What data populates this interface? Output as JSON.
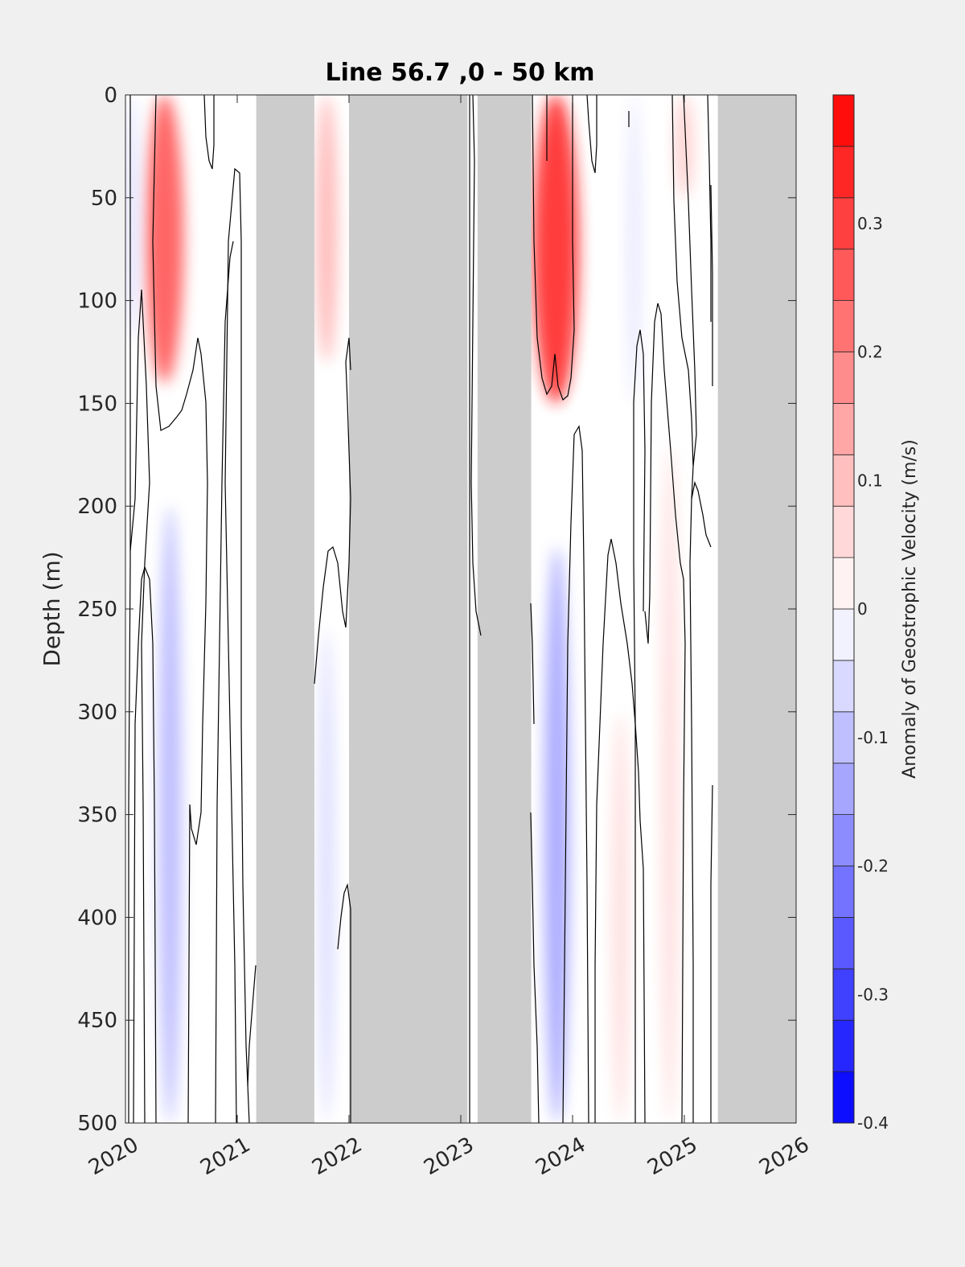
{
  "chart_data": {
    "type": "heatmap",
    "title": "Line 56.7 ,0 - 50 km",
    "xlabel": "",
    "ylabel": "Depth (m)",
    "xlim": [
      2020,
      2026
    ],
    "ylim": [
      0,
      500
    ],
    "y_reversed": true,
    "x_ticks": [
      "2020",
      "2021",
      "2022",
      "2023",
      "2024",
      "2025",
      "2026"
    ],
    "y_ticks": [
      "0",
      "50",
      "100",
      "150",
      "200",
      "250",
      "300",
      "350",
      "400",
      "450",
      "500"
    ],
    "colorbar": {
      "label": "Anomaly of Geostrophic Velocity (m/s)",
      "range": [
        -0.4,
        0.4
      ],
      "levels": 20,
      "ticks": [
        "-0.4",
        "-0.3",
        "-0.2",
        "-0.1",
        "0",
        "0.1",
        "0.2",
        "0.3"
      ],
      "colormap": "blue-white-red",
      "negative_color": "#0000ff",
      "positive_color": "#ff0000"
    },
    "no_data_color": "#cccccc",
    "no_data_periods": [
      {
        "start": 2021.17,
        "end": 2021.69
      },
      {
        "start": 2022.0,
        "end": 2023.06
      },
      {
        "start": 2023.15,
        "end": 2023.63
      },
      {
        "start": 2025.3,
        "end": 2026.0
      }
    ],
    "features": [
      {
        "time": 2020.35,
        "depth_top": 0,
        "depth_bottom": 140,
        "anomaly": 0.28
      },
      {
        "time": 2020.4,
        "depth_top": 200,
        "depth_bottom": 500,
        "anomaly": -0.12
      },
      {
        "time": 2021.8,
        "depth_top": 0,
        "depth_bottom": 130,
        "anomaly": 0.12
      },
      {
        "time": 2021.8,
        "depth_top": 260,
        "depth_bottom": 500,
        "anomaly": -0.06
      },
      {
        "time": 2023.85,
        "depth_top": 0,
        "depth_bottom": 150,
        "anomaly": 0.36
      },
      {
        "time": 2023.86,
        "depth_top": 220,
        "depth_bottom": 500,
        "anomaly": -0.15
      },
      {
        "time": 2024.43,
        "depth_top": 300,
        "depth_bottom": 500,
        "anomaly": 0.06
      },
      {
        "time": 2024.55,
        "depth_top": 0,
        "depth_bottom": 150,
        "anomaly": -0.04
      },
      {
        "time": 2024.87,
        "depth_top": 170,
        "depth_bottom": 500,
        "anomaly": 0.06
      },
      {
        "time": 2025.0,
        "depth_top": 0,
        "depth_bottom": 50,
        "anomaly": 0.08
      },
      {
        "time": 2020.05,
        "depth_top": 0,
        "depth_bottom": 120,
        "anomaly": -0.05
      }
    ],
    "grid": false,
    "legend": "colorbar-right"
  }
}
